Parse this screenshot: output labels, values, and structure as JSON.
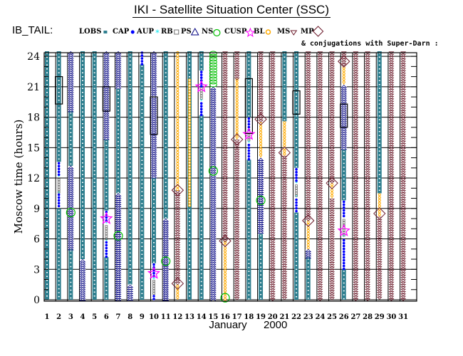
{
  "title": "IKI - Satellite Situation Center (SSC)",
  "chart_data": {
    "type": "timeline",
    "title": "IKI - Satellite Situation Center (SSC)",
    "satellite_label": "IB_TAIL:",
    "note": "& conjugations with Super-Darn :",
    "xlabel": "January",
    "xlabel_year": "2000",
    "ylabel": "Moscow time (hours)",
    "ylim": [
      0,
      24.5
    ],
    "y_ticks": [
      0,
      3,
      6,
      9,
      12,
      15,
      18,
      21,
      24
    ],
    "x_ticks": [
      "1",
      "2",
      "3",
      "4",
      "5",
      "6",
      "7",
      "8",
      "9",
      "10",
      "11",
      "12",
      "13",
      "14",
      "15",
      "16",
      "17",
      "18",
      "19",
      "20",
      "21",
      "22",
      "23",
      "24",
      "25",
      "26",
      "27",
      "28",
      "29",
      "30",
      "31"
    ],
    "colors": {
      "LOBS": "#2f7f8f",
      "CAP": "#0000ff",
      "AUP": "#00e5ee",
      "RB": "#707070",
      "PS": "#000080",
      "NS": "#00c000",
      "CUSP": "#ff00ff",
      "BL": "#ffaa00",
      "MS": "#6b1a2a",
      "MP": "#6b1a2a"
    },
    "legend": [
      {
        "key": "LOBS",
        "label": "LOBS"
      },
      {
        "key": "CAP",
        "label": "CAP"
      },
      {
        "key": "AUP",
        "label": "AUP"
      },
      {
        "key": "RB",
        "label": "RB"
      },
      {
        "key": "PS",
        "label": "PS"
      },
      {
        "key": "NS",
        "label": "NS"
      },
      {
        "key": "CUSP",
        "label": "CUSP"
      },
      {
        "key": "BL",
        "label": "BL"
      },
      {
        "key": "MS",
        "label": "MS"
      },
      {
        "key": "MP",
        "label": "MP"
      }
    ],
    "days": [
      {
        "day": 1,
        "segments": [
          [
            "LOBS",
            0,
            24.5
          ]
        ],
        "markers": []
      },
      {
        "day": 2,
        "segments": [
          [
            "LOBS",
            0,
            9
          ],
          [
            "CAP",
            9,
            10.5
          ],
          [
            "AUP",
            10.3,
            10.6
          ],
          [
            "RB",
            10.6,
            12
          ],
          [
            "AUP",
            12,
            12.2
          ],
          [
            "CAP",
            12.2,
            13.6
          ],
          [
            "LOBS",
            13.6,
            24.5
          ]
        ],
        "markers": [],
        "boxes": [
          [
            19.3,
            22
          ]
        ]
      },
      {
        "day": 3,
        "segments": [
          [
            "LOBS",
            0,
            5
          ],
          [
            "PS",
            5,
            13.2
          ],
          [
            "LOBS",
            13.2,
            18.6
          ],
          [
            "PS",
            18.6,
            24.5
          ]
        ],
        "markers": [
          [
            "NS",
            8.6
          ]
        ]
      },
      {
        "day": 4,
        "segments": [
          [
            "PS",
            0,
            4
          ],
          [
            "LOBS",
            4,
            24.5
          ]
        ],
        "markers": []
      },
      {
        "day": 5,
        "segments": [
          [
            "LOBS",
            0,
            24.5
          ]
        ],
        "markers": []
      },
      {
        "day": 6,
        "segments": [
          [
            "LOBS",
            0,
            4.2
          ],
          [
            "CAP",
            4.2,
            5.8
          ],
          [
            "AUP",
            5.7,
            5.9
          ],
          [
            "RB",
            5.9,
            7.4
          ],
          [
            "AUP",
            7.4,
            7.6
          ],
          [
            "CAP",
            7.6,
            8.8
          ],
          [
            "LOBS",
            8.8,
            15.8
          ],
          [
            "PS",
            15.8,
            24.5
          ]
        ],
        "markers": [
          [
            "CUSP",
            8
          ]
        ],
        "boxes": [
          [
            18.6,
            21
          ]
        ]
      },
      {
        "day": 7,
        "segments": [
          [
            "PS",
            0,
            10.5
          ],
          [
            "LOBS",
            10.5,
            20.8
          ],
          [
            "PS",
            20.8,
            24.5
          ]
        ],
        "markers": [
          [
            "NS",
            6.3
          ]
        ]
      },
      {
        "day": 8,
        "segments": [
          [
            "PS",
            0,
            1.5
          ],
          [
            "LOBS",
            1.5,
            24.5
          ]
        ],
        "markers": []
      },
      {
        "day": 9,
        "segments": [
          [
            "LOBS",
            0,
            23.2
          ],
          [
            "CAP",
            23.2,
            24.5
          ]
        ],
        "markers": []
      },
      {
        "day": 10,
        "segments": [
          [
            "CAP",
            0,
            0.5
          ],
          [
            "RB",
            0.5,
            2
          ],
          [
            "AUP",
            2,
            2.1
          ],
          [
            "CAP",
            2.1,
            3.6
          ],
          [
            "LOBS",
            3.6,
            12
          ],
          [
            "PS",
            12,
            24.5
          ]
        ],
        "markers": [
          [
            "CUSP",
            2.6
          ]
        ],
        "boxes": [
          [
            16.3,
            20
          ]
        ]
      },
      {
        "day": 11,
        "segments": [
          [
            "PS",
            0,
            8
          ],
          [
            "LOBS",
            8,
            24.5
          ]
        ],
        "markers": [
          [
            "NS",
            3.8
          ]
        ]
      },
      {
        "day": 12,
        "segments": [
          [
            "BL",
            0,
            1.5
          ],
          [
            "MS",
            1.5,
            10.8
          ],
          [
            "BL",
            10.8,
            24.5
          ]
        ],
        "markers": [
          [
            "MP",
            1.6
          ],
          [
            "MP",
            10.8
          ]
        ]
      },
      {
        "day": 13,
        "segments": [
          [
            "LOBS",
            0,
            21.8
          ],
          [
            "BL",
            9.2,
            21.8
          ],
          [
            "LOBS",
            21.8,
            24.5
          ]
        ],
        "markers": []
      },
      {
        "day": 14,
        "segments": [
          [
            "LOBS",
            0,
            18.2
          ],
          [
            "CAP",
            18.2,
            19.5
          ],
          [
            "AUP",
            19.5,
            19.7
          ],
          [
            "RB",
            19.7,
            21
          ],
          [
            "CAP",
            21,
            22.6
          ],
          [
            "LOBS",
            22.6,
            24.5
          ]
        ],
        "markers": [
          [
            "CUSP",
            21
          ]
        ]
      },
      {
        "day": 15,
        "segments": [
          [
            "PS",
            0,
            21
          ],
          [
            "NS",
            21,
            24.5
          ]
        ],
        "markers": [
          [
            "NS",
            12.7
          ]
        ]
      },
      {
        "day": 16,
        "segments": [
          [
            "BL",
            0,
            5.8
          ],
          [
            "MS",
            5.8,
            24.5
          ]
        ],
        "markers": [
          [
            "NS",
            0.2
          ],
          [
            "MP",
            5.8
          ]
        ]
      },
      {
        "day": 17,
        "segments": [
          [
            "MS",
            0,
            15.8
          ],
          [
            "BL",
            15.8,
            21.8
          ],
          [
            "MS",
            21.8,
            24.5
          ]
        ],
        "markers": [
          [
            "MP",
            15.8
          ]
        ]
      },
      {
        "day": 18,
        "segments": [
          [
            "LOBS",
            0,
            13.8
          ],
          [
            "CAP",
            13.8,
            15.4
          ],
          [
            "AUP",
            15.4,
            15.6
          ],
          [
            "RB",
            15.6,
            16.4
          ],
          [
            "CUSP",
            16.4,
            16.5
          ],
          [
            "CAP",
            16.5,
            18
          ],
          [
            "LOBS",
            18,
            24.5
          ]
        ],
        "markers": [
          [
            "CUSP",
            16.3
          ]
        ],
        "boxes": [
          [
            16.4,
            21.8
          ]
        ]
      },
      {
        "day": 19,
        "segments": [
          [
            "LOBS",
            0,
            6.5
          ],
          [
            "PS",
            6.5,
            14
          ],
          [
            "BL",
            14,
            17.5
          ],
          [
            "MS",
            17.5,
            24.5
          ]
        ],
        "markers": [
          [
            "NS",
            9.8
          ],
          [
            "MP",
            17.8
          ]
        ]
      },
      {
        "day": 20,
        "segments": [
          [
            "MS",
            0,
            24.5
          ]
        ],
        "markers": []
      },
      {
        "day": 21,
        "segments": [
          [
            "MS",
            0,
            14.2
          ],
          [
            "BL",
            14.2,
            17.6
          ],
          [
            "LOBS",
            17.6,
            24.5
          ]
        ],
        "markers": [
          [
            "MP",
            14.5
          ]
        ]
      },
      {
        "day": 22,
        "segments": [
          [
            "LOBS",
            0,
            8.6
          ],
          [
            "CAP",
            8.6,
            10
          ],
          [
            "AUP",
            10,
            10.2
          ],
          [
            "RB",
            10.2,
            11.4
          ],
          [
            "AUP",
            11.4,
            11.6
          ],
          [
            "CAP",
            11.6,
            13
          ],
          [
            "LOBS",
            13,
            24.5
          ]
        ],
        "markers": [],
        "boxes": [
          [
            18.3,
            20.6
          ]
        ]
      },
      {
        "day": 23,
        "segments": [
          [
            "LOBS",
            0,
            4.2
          ],
          [
            "PS",
            4.2,
            5
          ],
          [
            "BL",
            5,
            7.8
          ],
          [
            "MS",
            7.8,
            24.5
          ]
        ],
        "markers": [
          [
            "MP",
            7.8
          ]
        ]
      },
      {
        "day": 24,
        "segments": [
          [
            "MS",
            0,
            24.5
          ]
        ],
        "markers": []
      },
      {
        "day": 25,
        "segments": [
          [
            "MS",
            0,
            10
          ],
          [
            "BL",
            10,
            11.5
          ],
          [
            "MS",
            11.5,
            24.5
          ]
        ],
        "markers": [
          [
            "MP",
            11.5
          ]
        ]
      },
      {
        "day": 26,
        "segments": [
          [
            "LOBS",
            0,
            3
          ],
          [
            "CAP",
            3,
            6
          ],
          [
            "AUP",
            6,
            6.3
          ],
          [
            "RB",
            6.3,
            8
          ],
          [
            "CAP",
            8,
            9.8
          ],
          [
            "LOBS",
            9.8,
            14.8
          ],
          [
            "PS",
            14.8,
            21.2
          ],
          [
            "BL",
            21.2,
            23
          ],
          [
            "MS",
            23,
            24.5
          ]
        ],
        "markers": [
          [
            "CUSP",
            6.8
          ],
          [
            "MP",
            23.5
          ]
        ],
        "boxes": [
          [
            17,
            19.3
          ]
        ]
      },
      {
        "day": 27,
        "segments": [
          [
            "MS",
            0,
            24.5
          ]
        ],
        "markers": []
      },
      {
        "day": 28,
        "segments": [
          [
            "MS",
            0,
            24.5
          ]
        ],
        "markers": []
      },
      {
        "day": 29,
        "segments": [
          [
            "MS",
            0,
            8.2
          ],
          [
            "BL",
            8.2,
            10.5
          ],
          [
            "LOBS",
            10.5,
            24.5
          ]
        ],
        "markers": [
          [
            "MP",
            8.5
          ]
        ]
      },
      {
        "day": 30,
        "segments": [
          [
            "MS",
            0,
            24.5
          ]
        ],
        "markers": []
      },
      {
        "day": 31,
        "segments": [
          [
            "MS",
            0,
            24.5
          ]
        ],
        "markers": []
      }
    ]
  }
}
